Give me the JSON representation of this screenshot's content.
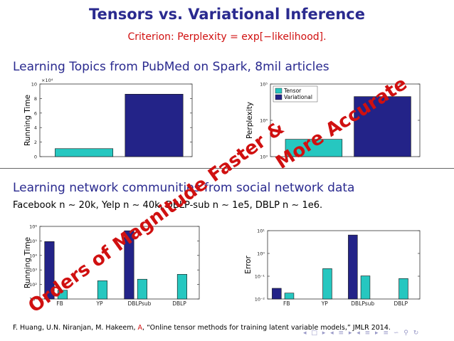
{
  "slide": {
    "title": "Tensors vs. Variational Inference",
    "subtitle": "Criterion: Perplexity = exp[−likelihood].",
    "section1": "Learning Topics from PubMed on Spark, 8mil articles",
    "section2": "Learning network communities from social network data",
    "datasets_line": "Facebook n ∼ 20k, Yelp n ∼ 40k, DBLP-sub n ∼ 1e5, DBLP n ∼ 1e6.",
    "overlay_text_1": "More Accurate",
    "overlay_text_2": "Orders of Magnitude Faster &",
    "citation_prefix": "F. Huang, U.N. Niranjan, M. Hakeem, ",
    "citation_highlight": "A",
    "citation_suffix": ", “Online tensor methods for training latent variable models,” JMLR 2014.",
    "nav_symbols": "◂ □ ▸ ◂ ≡ ▸ ◂ ≡ ▸ ≡ ∽ ⚲ ↻"
  },
  "colors": {
    "tensor": "#26c7c0",
    "variational": "#232388",
    "accent_red": "#d01010",
    "heading_blue": "#2a2a8f"
  },
  "chart_data": [
    {
      "type": "bar",
      "title": "",
      "ylabel": "Running Time",
      "ylim": [
        0,
        100000
      ],
      "y_ticks": [
        "0",
        "2",
        "4",
        "6",
        "8",
        "10"
      ],
      "y_multiplier": "×10⁴",
      "categories": [
        ""
      ],
      "series": [
        {
          "name": "Tensor",
          "values": [
            11000
          ]
        },
        {
          "name": "Variational",
          "values": [
            86000
          ]
        }
      ]
    },
    {
      "type": "bar",
      "title": "",
      "ylabel": "Perplexity",
      "yscale": "log",
      "ylim": [
        1000,
        100000
      ],
      "y_ticks": [
        "10³",
        "10⁴",
        "10⁵"
      ],
      "legend": {
        "placement": "top-left",
        "entries": [
          "Tensor",
          "Variational"
        ]
      },
      "categories": [
        ""
      ],
      "series": [
        {
          "name": "Tensor",
          "values": [
            3000
          ]
        },
        {
          "name": "Variational",
          "values": [
            45000
          ]
        }
      ]
    },
    {
      "type": "bar",
      "title": "",
      "ylabel": "Running Time",
      "yscale": "log",
      "ylim": [
        10,
        1000000
      ],
      "y_ticks": [
        "10¹",
        "10²",
        "10³",
        "10⁴",
        "10⁵",
        "10⁶"
      ],
      "categories": [
        "FB",
        "YP",
        "DBLPsub",
        "DBLP"
      ],
      "series": [
        {
          "name": "Variational",
          "values": [
            90000,
            null,
            500000,
            null
          ]
        },
        {
          "name": "Tensor",
          "values": [
            40,
            180,
            230,
            500
          ]
        }
      ]
    },
    {
      "type": "bar",
      "title": "",
      "ylabel": "Error",
      "yscale": "log",
      "ylim": [
        0.01,
        30
      ],
      "y_ticks": [
        "10⁻²",
        "10⁻¹",
        "10⁰",
        "10¹"
      ],
      "categories": [
        "FB",
        "YP",
        "DBLPsub",
        "DBLP"
      ],
      "series": [
        {
          "name": "Variational",
          "values": [
            0.035,
            null,
            18,
            null
          ]
        },
        {
          "name": "Tensor",
          "values": [
            0.02,
            0.35,
            0.15,
            0.11
          ]
        }
      ]
    }
  ]
}
